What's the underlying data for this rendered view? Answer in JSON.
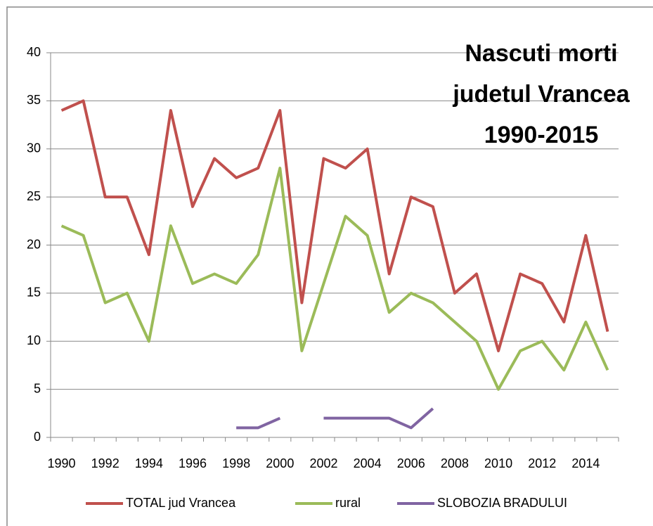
{
  "chart_data": {
    "type": "line",
    "title": [
      "Nascuti morti",
      "judetul Vrancea",
      "1990-2015"
    ],
    "categories": [
      "1990",
      null,
      "1992",
      null,
      "1994",
      null,
      "1996",
      null,
      "1998",
      null,
      "2000",
      null,
      "2002",
      null,
      "2004",
      null,
      "2006",
      null,
      "2008",
      null,
      "2010",
      null,
      "2012",
      null,
      "2014",
      null
    ],
    "series": [
      {
        "name": "TOTAL jud Vrancea",
        "color": "#c0504d",
        "values": [
          34,
          35,
          25,
          25,
          19,
          34,
          24,
          29,
          27,
          28,
          34,
          14,
          29,
          28,
          30,
          17,
          25,
          24,
          15,
          17,
          9,
          17,
          16,
          12,
          21,
          11
        ]
      },
      {
        "name": "rural",
        "color": "#9bbb59",
        "values": [
          22,
          21,
          14,
          15,
          10,
          22,
          16,
          17,
          16,
          19,
          28,
          9,
          16,
          23,
          21,
          13,
          15,
          14,
          12,
          10,
          5,
          9,
          10,
          7,
          12,
          7
        ]
      },
      {
        "name": "SLOBOZIA BRADULUI",
        "color": "#8064a2",
        "values": [
          null,
          null,
          null,
          null,
          null,
          null,
          null,
          null,
          1,
          1,
          2,
          null,
          2,
          2,
          2,
          2,
          1,
          3,
          null,
          null,
          null,
          null,
          null,
          null,
          null,
          null
        ]
      }
    ],
    "ylim": [
      0,
      40
    ],
    "yticks": [
      0,
      5,
      10,
      15,
      20,
      25,
      30,
      35,
      40
    ],
    "grid": true,
    "legend": "bottom"
  }
}
